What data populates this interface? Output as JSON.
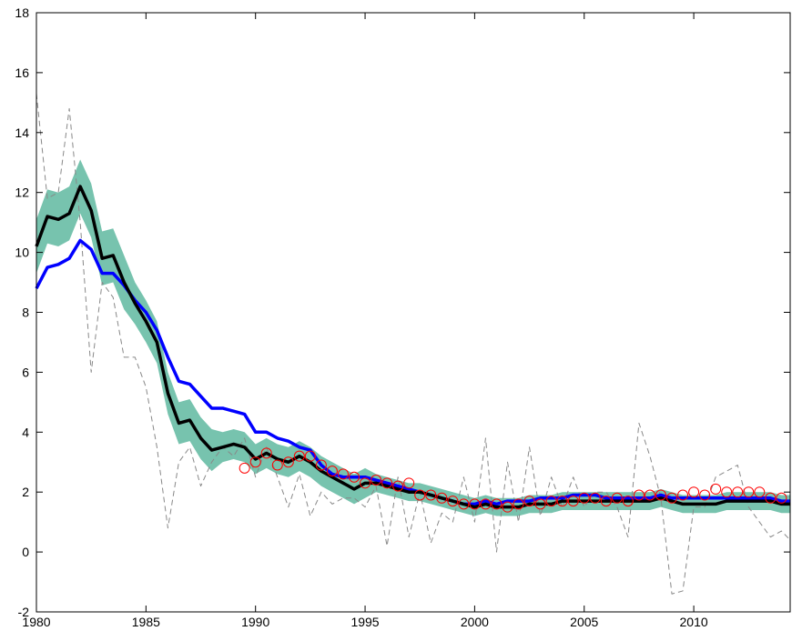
{
  "chart_data": {
    "type": "line",
    "x": [
      1980,
      1980.5,
      1981,
      1981.5,
      1982,
      1982.5,
      1983,
      1983.5,
      1984,
      1984.5,
      1985,
      1985.5,
      1986,
      1986.5,
      1987,
      1987.5,
      1988,
      1988.5,
      1989,
      1989.5,
      1990,
      1990.5,
      1991,
      1991.5,
      1992,
      1992.5,
      1993,
      1993.5,
      1994,
      1994.5,
      1995,
      1995.5,
      1996,
      1996.5,
      1997,
      1997.5,
      1998,
      1998.5,
      1999,
      1999.5,
      2000,
      2000.5,
      2001,
      2001.5,
      2002,
      2002.5,
      2003,
      2003.5,
      2004,
      2004.5,
      2005,
      2005.5,
      2006,
      2006.5,
      2007,
      2007.5,
      2008,
      2008.5,
      2009,
      2009.5,
      2010,
      2010.5,
      2011,
      2011.5,
      2012,
      2012.5,
      2013,
      2013.5,
      2014,
      2014.4
    ],
    "xlim": [
      1980,
      2014.4
    ],
    "ylim": [
      -2,
      18
    ],
    "xticks": [
      1980,
      1985,
      1990,
      1995,
      2000,
      2005,
      2010
    ],
    "yticks": [
      -2,
      0,
      2,
      4,
      6,
      8,
      10,
      12,
      14,
      16,
      18
    ],
    "band": {
      "color": "#5fb8a0",
      "lower": [
        9.3,
        10.3,
        10.2,
        10.4,
        11.3,
        10.5,
        8.9,
        9.0,
        8.1,
        7.6,
        7.0,
        6.3,
        4.6,
        3.6,
        3.7,
        3.1,
        2.7,
        3.0,
        3.1,
        3.0,
        2.6,
        2.8,
        2.6,
        2.5,
        2.7,
        2.5,
        2.2,
        2.0,
        1.8,
        1.6,
        1.8,
        2.0,
        1.9,
        1.8,
        1.7,
        1.7,
        1.6,
        1.5,
        1.4,
        1.3,
        1.2,
        1.3,
        1.2,
        1.2,
        1.2,
        1.3,
        1.3,
        1.3,
        1.4,
        1.4,
        1.4,
        1.4,
        1.4,
        1.4,
        1.4,
        1.4,
        1.4,
        1.5,
        1.4,
        1.3,
        1.3,
        1.3,
        1.3,
        1.4,
        1.4,
        1.4,
        1.4,
        1.4,
        1.3,
        1.3
      ],
      "upper": [
        11.1,
        12.1,
        12.0,
        12.2,
        13.1,
        12.3,
        10.7,
        10.8,
        9.9,
        9.0,
        8.4,
        7.7,
        6.0,
        5.0,
        5.1,
        4.5,
        4.1,
        4.0,
        4.1,
        4.0,
        3.6,
        3.8,
        3.6,
        3.5,
        3.7,
        3.5,
        3.2,
        3.0,
        2.8,
        2.6,
        2.8,
        2.6,
        2.5,
        2.4,
        2.3,
        2.3,
        2.2,
        2.1,
        2.0,
        1.9,
        1.8,
        1.9,
        1.8,
        1.8,
        1.8,
        1.9,
        1.9,
        1.9,
        2.0,
        2.0,
        2.0,
        2.0,
        2.0,
        2.0,
        2.0,
        2.0,
        2.0,
        2.1,
        2.0,
        1.9,
        1.9,
        1.9,
        1.9,
        2.0,
        2.0,
        2.0,
        2.0,
        2.0,
        1.9,
        1.9
      ]
    },
    "series": [
      {
        "color": "#888888",
        "dashed": true,
        "width": 1,
        "values": [
          15.3,
          11.8,
          12.0,
          14.8,
          11.0,
          6.0,
          9.0,
          8.5,
          6.5,
          6.5,
          5.5,
          3.5,
          0.8,
          3.0,
          3.5,
          2.2,
          3.0,
          3.5,
          3.2,
          3.8,
          2.5,
          3.5,
          2.5,
          1.5,
          2.6,
          1.2,
          2.0,
          1.6,
          1.8,
          1.8,
          1.5,
          2.2,
          0.2,
          2.5,
          0.5,
          2.0,
          0.3,
          1.3,
          1.0,
          2.5,
          1.0,
          3.8,
          0.0,
          3.0,
          1.0,
          3.5,
          1.2,
          2.5,
          1.5,
          2.5,
          1.5,
          2.0,
          2.0,
          1.5,
          0.5,
          4.3,
          3.2,
          1.8,
          -1.4,
          -1.3,
          1.5,
          1.5,
          2.5,
          2.7,
          2.9,
          1.5,
          1.0,
          0.5,
          0.7,
          0.4
        ]
      },
      {
        "color": "#0000ff",
        "dashed": false,
        "width": 3.5,
        "values": [
          8.8,
          9.5,
          9.6,
          9.8,
          10.4,
          10.1,
          9.3,
          9.3,
          8.9,
          8.4,
          8.0,
          7.4,
          6.5,
          5.7,
          5.6,
          5.2,
          4.8,
          4.8,
          4.7,
          4.6,
          4.0,
          4.0,
          3.8,
          3.7,
          3.5,
          3.4,
          2.9,
          2.6,
          2.5,
          2.5,
          2.5,
          2.4,
          2.3,
          2.2,
          2.1,
          2.0,
          1.9,
          1.8,
          1.7,
          1.6,
          1.6,
          1.7,
          1.6,
          1.7,
          1.7,
          1.7,
          1.8,
          1.8,
          1.8,
          1.9,
          1.9,
          1.9,
          1.8,
          1.8,
          1.8,
          1.8,
          1.8,
          1.9,
          1.8,
          1.8,
          1.8,
          1.8,
          1.8,
          1.8,
          1.8,
          1.8,
          1.8,
          1.8,
          1.7,
          1.7
        ]
      },
      {
        "color": "#000000",
        "dashed": false,
        "width": 3.5,
        "values": [
          10.2,
          11.2,
          11.1,
          11.3,
          12.2,
          11.4,
          9.8,
          9.9,
          9.0,
          8.3,
          7.7,
          7.0,
          5.3,
          4.3,
          4.4,
          3.8,
          3.4,
          3.5,
          3.6,
          3.5,
          3.1,
          3.3,
          3.1,
          3.0,
          3.2,
          3.0,
          2.7,
          2.5,
          2.3,
          2.1,
          2.3,
          2.3,
          2.2,
          2.1,
          2.0,
          2.0,
          1.9,
          1.8,
          1.7,
          1.6,
          1.5,
          1.6,
          1.5,
          1.5,
          1.5,
          1.6,
          1.6,
          1.6,
          1.7,
          1.7,
          1.7,
          1.7,
          1.7,
          1.7,
          1.7,
          1.7,
          1.7,
          1.8,
          1.7,
          1.6,
          1.6,
          1.6,
          1.6,
          1.7,
          1.7,
          1.7,
          1.7,
          1.7,
          1.6,
          1.6
        ]
      }
    ],
    "markers": {
      "color": "#ff0000",
      "x": [
        1989.5,
        1990,
        1990.5,
        1991,
        1991.5,
        1992,
        1992.5,
        1993,
        1993.5,
        1994,
        1994.5,
        1995,
        1995.5,
        1996,
        1996.5,
        1997,
        1997.5,
        1998,
        1998.5,
        1999,
        1999.5,
        2000,
        2000.5,
        2001,
        2001.5,
        2002,
        2002.5,
        2003,
        2003.5,
        2004,
        2004.5,
        2005,
        2005.5,
        2006,
        2006.5,
        2007,
        2007.5,
        2008,
        2008.5,
        2009,
        2009.5,
        2010,
        2010.5,
        2011,
        2011.5,
        2012,
        2012.5,
        2013,
        2013.5,
        2014
      ],
      "values": [
        2.8,
        3.0,
        3.3,
        2.9,
        3.0,
        3.2,
        3.2,
        2.9,
        2.7,
        2.6,
        2.5,
        2.3,
        2.4,
        2.3,
        2.2,
        2.3,
        1.9,
        1.9,
        1.8,
        1.7,
        1.6,
        1.6,
        1.6,
        1.6,
        1.5,
        1.6,
        1.7,
        1.6,
        1.7,
        1.7,
        1.7,
        1.8,
        1.8,
        1.7,
        1.8,
        1.7,
        1.9,
        1.9,
        1.9,
        1.8,
        1.9,
        2.0,
        1.9,
        2.1,
        2.0,
        2.0,
        2.0,
        2.0,
        1.8,
        1.8
      ]
    }
  }
}
